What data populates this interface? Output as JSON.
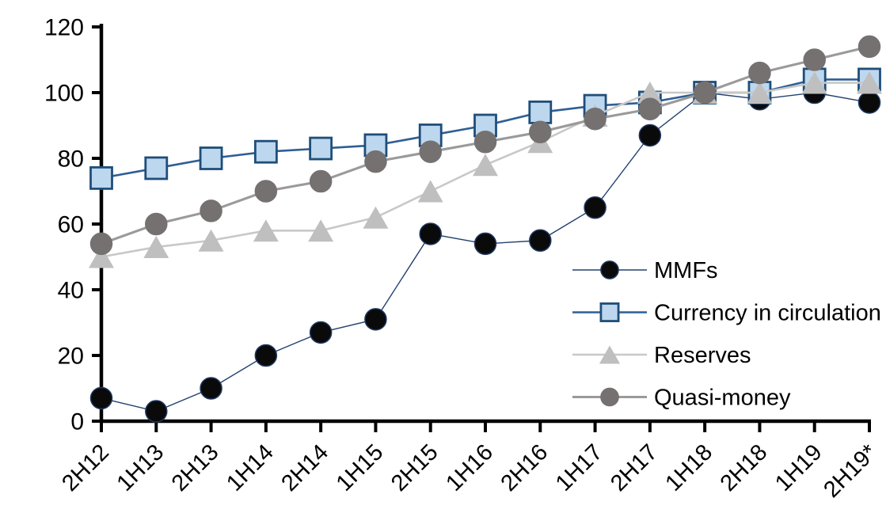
{
  "chart_data": {
    "type": "line",
    "title": "",
    "xlabel": "",
    "ylabel": "",
    "grid": false,
    "legend_position": "inside-center-right",
    "axis_color": "#000000",
    "ylim": [
      0,
      120
    ],
    "yticks": [
      0,
      20,
      40,
      60,
      80,
      100,
      120
    ],
    "categories": [
      "2H12",
      "1H13",
      "2H13",
      "1H14",
      "2H14",
      "1H15",
      "2H15",
      "1H16",
      "2H16",
      "1H17",
      "2H17",
      "1H18",
      "2H18",
      "1H19",
      "2H19*"
    ],
    "series": [
      {
        "id": "mmfs",
        "name": "MMFs",
        "marker": "circle",
        "marker_fill": "#0a0a0a",
        "marker_stroke": "#1f3864",
        "line_color": "#23406e",
        "line_width": 1.4,
        "values": [
          7,
          3,
          10,
          20,
          27,
          31,
          57,
          54,
          55,
          65,
          87,
          100,
          98,
          100,
          97
        ]
      },
      {
        "id": "currency-in-circulation",
        "name": "Currency in circulation",
        "marker": "square",
        "marker_fill": "#bdd7ee",
        "marker_stroke": "#1f4e79",
        "line_color": "#2e5f94",
        "line_width": 2.6,
        "values": [
          74,
          77,
          80,
          82,
          83,
          84,
          87,
          90,
          94,
          96,
          97,
          100,
          100,
          104,
          104
        ]
      },
      {
        "id": "reserves",
        "name": "Reserves",
        "marker": "triangle",
        "marker_fill": "#bfbfbf",
        "marker_stroke": "none",
        "line_color": "#c8c8c8",
        "line_width": 2.6,
        "values": [
          50,
          53,
          55,
          58,
          58,
          62,
          70,
          78,
          85,
          93,
          100,
          100,
          100,
          103,
          103
        ]
      },
      {
        "id": "quasi-money",
        "name": "Quasi-money",
        "marker": "circle",
        "marker_fill": "#767171",
        "marker_stroke": "#767171",
        "line_color": "#9a9a9a",
        "line_width": 3.1,
        "values": [
          54,
          60,
          64,
          70,
          73,
          79,
          82,
          85,
          88,
          92,
          95,
          100,
          106,
          110,
          114
        ]
      }
    ]
  }
}
